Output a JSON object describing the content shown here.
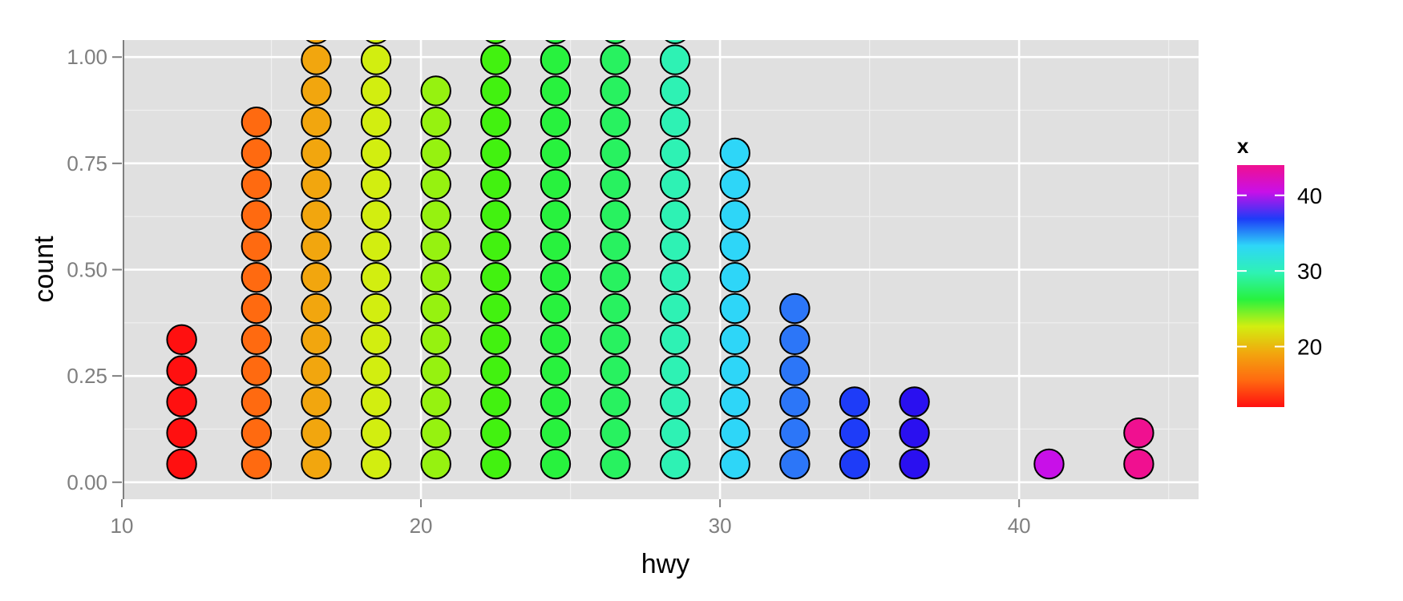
{
  "chart_data": {
    "type": "scatter",
    "subtype": "dotplot",
    "xlabel": "hwy",
    "ylabel": "count",
    "xlim": [
      10,
      46
    ],
    "ylim": [
      -0.04,
      1.04
    ],
    "x_ticks": [
      10,
      20,
      30,
      40
    ],
    "x_tick_labels": [
      "10",
      "20",
      "30",
      "40"
    ],
    "y_ticks": [
      0,
      0.25,
      0.5,
      0.75,
      1
    ],
    "y_tick_labels": [
      "0.00",
      "0.25",
      "0.50",
      "0.75",
      "1.00"
    ],
    "grid": true,
    "background_color": "#e0e0e0",
    "grid_color": "#ffffff",
    "dot_stroke_color": "#000000",
    "stacks": [
      {
        "x": 12,
        "count": 5,
        "color": "#ff1010"
      },
      {
        "x": 14.5,
        "count": 12,
        "color": "#ff6a10"
      },
      {
        "x": 16.5,
        "count": 16,
        "color": "#f2a60e"
      },
      {
        "x": 18.5,
        "count": 16,
        "color": "#d2ee10"
      },
      {
        "x": 20.5,
        "count": 13,
        "color": "#96f210"
      },
      {
        "x": 22.5,
        "count": 15,
        "color": "#42f210"
      },
      {
        "x": 24.5,
        "count": 16,
        "color": "#28f23e"
      },
      {
        "x": 26.5,
        "count": 16,
        "color": "#28f260"
      },
      {
        "x": 28.5,
        "count": 16,
        "color": "#2ef2b4"
      },
      {
        "x": 30.5,
        "count": 11,
        "color": "#2ed6f8"
      },
      {
        "x": 32.5,
        "count": 6,
        "color": "#2c76f8"
      },
      {
        "x": 34.5,
        "count": 3,
        "color": "#1e3cf8"
      },
      {
        "x": 36.5,
        "count": 3,
        "color": "#2a10f0"
      },
      {
        "x": 41,
        "count": 1,
        "color": "#c810e8"
      },
      {
        "x": 44,
        "count": 2,
        "color": "#f01090"
      }
    ],
    "legend": {
      "title": "x",
      "position": "right",
      "type": "colorbar",
      "range": [
        12,
        44
      ],
      "breaks": [
        20,
        30,
        40
      ],
      "break_labels": [
        "20",
        "30",
        "40"
      ],
      "gradient_colors": [
        "#ff1010",
        "#ff6a10",
        "#f2a60e",
        "#d2ee10",
        "#28f23e",
        "#2ef2b4",
        "#2ed6f8",
        "#1e3cf8",
        "#c810e8",
        "#f01090"
      ]
    }
  }
}
